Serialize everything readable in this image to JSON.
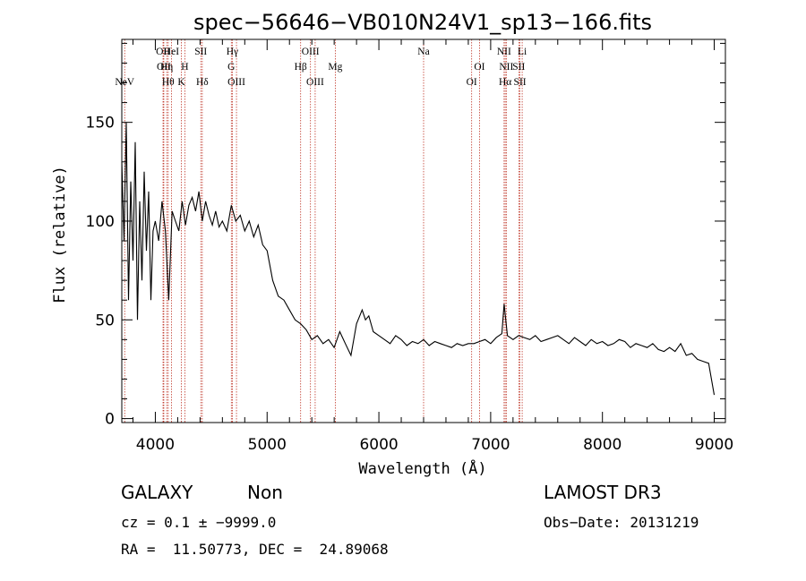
{
  "chart_data": {
    "type": "line",
    "title": "spec−56646−VB010N24V1_sp13−166.fits",
    "xlabel": "Wavelength (Å)",
    "ylabel": "Flux (relative)",
    "xlim": [
      3700,
      9100
    ],
    "ylim": [
      -2,
      192
    ],
    "xticks": [
      4000,
      5000,
      6000,
      7000,
      8000,
      9000
    ],
    "yticks": [
      0,
      50,
      100,
      150
    ],
    "series": [
      {
        "name": "flux",
        "x": [
          3700,
          3720,
          3740,
          3760,
          3780,
          3800,
          3820,
          3840,
          3860,
          3880,
          3900,
          3920,
          3940,
          3960,
          3980,
          4000,
          4030,
          4060,
          4090,
          4120,
          4150,
          4180,
          4210,
          4240,
          4270,
          4300,
          4330,
          4360,
          4390,
          4420,
          4450,
          4480,
          4510,
          4540,
          4570,
          4600,
          4640,
          4680,
          4720,
          4760,
          4800,
          4840,
          4880,
          4920,
          4960,
          5000,
          5050,
          5100,
          5150,
          5200,
          5250,
          5300,
          5350,
          5400,
          5450,
          5500,
          5550,
          5600,
          5650,
          5700,
          5750,
          5800,
          5850,
          5880,
          5910,
          5950,
          6000,
          6050,
          6100,
          6150,
          6200,
          6250,
          6300,
          6350,
          6400,
          6450,
          6500,
          6550,
          6600,
          6650,
          6700,
          6750,
          6800,
          6850,
          6900,
          6950,
          7000,
          7050,
          7100,
          7120,
          7150,
          7200,
          7250,
          7300,
          7350,
          7400,
          7450,
          7500,
          7550,
          7600,
          7650,
          7700,
          7750,
          7800,
          7850,
          7900,
          7950,
          8000,
          8050,
          8100,
          8150,
          8200,
          8250,
          8300,
          8350,
          8400,
          8450,
          8500,
          8550,
          8600,
          8650,
          8700,
          8750,
          8800,
          8850,
          8900,
          8950,
          9000
        ],
        "y": [
          130,
          90,
          150,
          60,
          120,
          80,
          140,
          50,
          110,
          70,
          125,
          85,
          115,
          60,
          95,
          100,
          90,
          110,
          95,
          60,
          105,
          100,
          95,
          110,
          98,
          108,
          112,
          105,
          115,
          100,
          110,
          103,
          98,
          105,
          97,
          100,
          95,
          108,
          100,
          103,
          95,
          100,
          92,
          98,
          88,
          85,
          70,
          62,
          60,
          55,
          50,
          48,
          45,
          40,
          42,
          38,
          40,
          36,
          44,
          38,
          32,
          48,
          55,
          50,
          52,
          44,
          42,
          40,
          38,
          42,
          40,
          37,
          39,
          38,
          40,
          37,
          39,
          38,
          37,
          36,
          38,
          37,
          38,
          38,
          39,
          40,
          38,
          41,
          43,
          58,
          42,
          40,
          42,
          41,
          40,
          42,
          39,
          40,
          41,
          42,
          40,
          38,
          41,
          39,
          37,
          40,
          38,
          39,
          37,
          38,
          40,
          39,
          36,
          38,
          37,
          36,
          38,
          35,
          34,
          36,
          34,
          38,
          32,
          33,
          30,
          29,
          28,
          12
        ]
      }
    ],
    "spectral_lines": [
      {
        "label": "NeV",
        "wavelength": 3726,
        "row": 3
      },
      {
        "label": "OII",
        "wavelength": 4069,
        "row": 0
      },
      {
        "label": "OII",
        "wavelength": 4076,
        "row": 1
      },
      {
        "label": "Hη",
        "wavelength": 4102,
        "row": 1
      },
      {
        "label": "Hθ",
        "wavelength": 4115,
        "row": 2
      },
      {
        "label": "HeI",
        "wavelength": 4144,
        "row": 0
      },
      {
        "label": "K",
        "wavelength": 4233,
        "row": 2
      },
      {
        "label": "H",
        "wavelength": 4264,
        "row": 1
      },
      {
        "label": "SII",
        "wavelength": 4407,
        "row": 0
      },
      {
        "label": "Hδ",
        "wavelength": 4420,
        "row": 2
      },
      {
        "label": "Hγ",
        "wavelength": 4689,
        "row": 0
      },
      {
        "label": "G",
        "wavelength": 4680,
        "row": 1
      },
      {
        "label": "OIII",
        "wavelength": 4726,
        "row": 2
      },
      {
        "label": "OIII",
        "wavelength": 5388,
        "row": 0
      },
      {
        "label": "Hβ",
        "wavelength": 5300,
        "row": 1
      },
      {
        "label": "OIII",
        "wavelength": 5430,
        "row": 2
      },
      {
        "label": "Mg",
        "wavelength": 5610,
        "row": 1
      },
      {
        "label": "Na",
        "wavelength": 6400,
        "row": 0
      },
      {
        "label": "OI",
        "wavelength": 6900,
        "row": 1
      },
      {
        "label": "OI",
        "wavelength": 6830,
        "row": 2
      },
      {
        "label": "NII",
        "wavelength": 7120,
        "row": 0
      },
      {
        "label": "NII",
        "wavelength": 7140,
        "row": 1
      },
      {
        "label": "Hα",
        "wavelength": 7130,
        "row": 2
      },
      {
        "label": "Li",
        "wavelength": 7282,
        "row": 0
      },
      {
        "label": "SII",
        "wavelength": 7252,
        "row": 1
      },
      {
        "label": "SII",
        "wavelength": 7262,
        "row": 2
      }
    ]
  },
  "info": {
    "classification": "GALAXY",
    "subclass": "Non",
    "survey": "LAMOST DR3",
    "redshift": "cz = 0.1 ± −9999.0",
    "obs_date": "Obs−Date: 20131219",
    "coords": "RA =  11.50773, DEC =  24.89068"
  },
  "colors": {
    "line_markers": "#c0392b",
    "spectrum": "#000000"
  }
}
